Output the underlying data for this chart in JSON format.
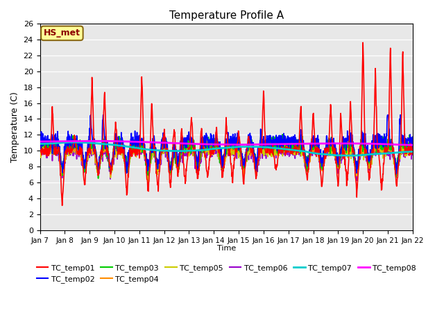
{
  "title": "Temperature Profile A",
  "xlabel": "Time",
  "ylabel": "Temperature (C)",
  "ylim": [
    0,
    26
  ],
  "yticks": [
    0,
    2,
    4,
    6,
    8,
    10,
    12,
    14,
    16,
    18,
    20,
    22,
    24,
    26
  ],
  "xtick_labels": [
    "Jan 7",
    "Jan 8",
    "Jan 9",
    "Jan 10",
    "Jan 11",
    "Jan 12",
    "Jan 13",
    "Jan 14",
    "Jan 15",
    "Jan 16",
    "Jan 17",
    "Jan 18",
    "Jan 19",
    "Jan 20",
    "Jan 21",
    "Jan 22"
  ],
  "annotation_text": "HS_met",
  "annotation_color": "#8B0000",
  "annotation_bg": "#FFFF99",
  "annotation_border": "#8B6914",
  "bg_color": "#E8E8E8",
  "series_colors": {
    "TC_temp01": "#FF0000",
    "TC_temp02": "#0000FF",
    "TC_temp03": "#00CC00",
    "TC_temp04": "#FF8C00",
    "TC_temp05": "#CCCC00",
    "TC_temp06": "#9900CC",
    "TC_temp07": "#00CCCC",
    "TC_temp08": "#FF00FF"
  },
  "series_linewidths": {
    "TC_temp01": 1.2,
    "TC_temp02": 1.2,
    "TC_temp03": 1.2,
    "TC_temp04": 1.2,
    "TC_temp05": 1.2,
    "TC_temp06": 1.2,
    "TC_temp07": 2.0,
    "TC_temp08": 2.0
  }
}
